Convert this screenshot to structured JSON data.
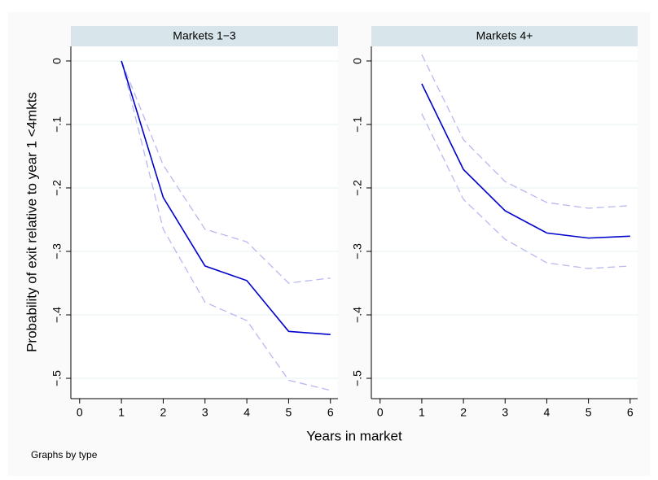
{
  "ylabel": "Probability of exit relative to year 1 <4mkts",
  "xlabel": "Years in market",
  "note": "Graphs by type",
  "chart_data": [
    {
      "type": "line",
      "title": "Markets 1−3",
      "x": [
        1,
        2,
        3,
        4,
        5,
        6
      ],
      "series": [
        {
          "color": "#b8b8f2",
          "style": "dashed",
          "values": [
            0,
            -0.164,
            -0.265,
            -0.285,
            -0.35,
            -0.342
          ]
        },
        {
          "color": "#b8b8f2",
          "style": "dashed",
          "values": [
            0,
            -0.265,
            -0.38,
            -0.409,
            -0.503,
            -0.519
          ]
        },
        {
          "color": "#0000cc",
          "style": "solid",
          "values": [
            0,
            -0.215,
            -0.323,
            -0.346,
            -0.426,
            -0.431
          ]
        }
      ],
      "xlim": [
        -0.21,
        6.18
      ],
      "xticks": [
        0,
        1,
        2,
        3,
        4,
        5,
        6
      ],
      "ylim": [
        -0.532,
        0.023
      ],
      "yticks": [
        0,
        {
          "value": -0.1,
          "label": "−.1"
        },
        {
          "value": -0.2,
          "label": "−.2"
        },
        {
          "value": -0.3,
          "label": "−.3"
        },
        {
          "value": -0.4,
          "label": "−.4"
        },
        {
          "value": -0.5,
          "label": "−.5"
        }
      ],
      "grid": true
    },
    {
      "type": "line",
      "title": "Markets 4+",
      "x": [
        1,
        2,
        3,
        4,
        5,
        6
      ],
      "series": [
        {
          "color": "#b8b8f2",
          "style": "dashed",
          "values": [
            0.01,
            -0.124,
            -0.19,
            -0.223,
            -0.232,
            -0.228
          ]
        },
        {
          "color": "#b8b8f2",
          "style": "dashed",
          "values": [
            -0.083,
            -0.218,
            -0.281,
            -0.318,
            -0.327,
            -0.323
          ]
        },
        {
          "color": "#0000cc",
          "style": "solid",
          "values": [
            -0.036,
            -0.171,
            -0.236,
            -0.271,
            -0.279,
            -0.276
          ]
        }
      ],
      "xlim": [
        -0.21,
        6.18
      ],
      "xticks": [
        0,
        1,
        2,
        3,
        4,
        5,
        6
      ],
      "ylim": [
        -0.532,
        0.023
      ],
      "yticks": [
        0,
        {
          "value": -0.1,
          "label": "−.1"
        },
        {
          "value": -0.2,
          "label": "−.2"
        },
        {
          "value": -0.3,
          "label": "−.3"
        },
        {
          "value": -0.4,
          "label": "−.4"
        },
        {
          "value": -0.5,
          "label": "−.5"
        }
      ],
      "grid": true
    }
  ]
}
